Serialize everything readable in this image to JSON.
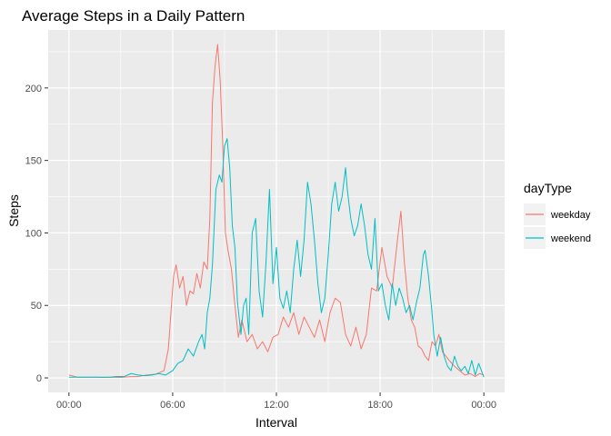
{
  "chart_data": {
    "type": "line",
    "title": "Average Steps in a Daily Pattern",
    "xlabel": "Interval",
    "ylabel": "Steps",
    "x_ticks": [
      "00:00",
      "06:00",
      "12:00",
      "18:00",
      "00:00"
    ],
    "x_tick_hours": [
      0,
      6,
      12,
      18,
      24
    ],
    "y_ticks": [
      0,
      50,
      100,
      150,
      200
    ],
    "xlim_hours": [
      -1.2,
      25.2
    ],
    "ylim": [
      -10,
      240
    ],
    "grid": true,
    "legend": {
      "title": "dayType",
      "position": "right"
    },
    "x_unit": "hour of day",
    "series": [
      {
        "name": "weekday",
        "color": "#F8766D",
        "points": [
          [
            0,
            2
          ],
          [
            0.5,
            0.5
          ],
          [
            1,
            0.5
          ],
          [
            1.5,
            0.5
          ],
          [
            2,
            0.3
          ],
          [
            2.5,
            0.5
          ],
          [
            3,
            0.3
          ],
          [
            3.5,
            0.8
          ],
          [
            4,
            1
          ],
          [
            4.5,
            2
          ],
          [
            5,
            2.5
          ],
          [
            5.5,
            5
          ],
          [
            5.75,
            20
          ],
          [
            5.9,
            45
          ],
          [
            6.05,
            70
          ],
          [
            6.2,
            78
          ],
          [
            6.4,
            62
          ],
          [
            6.6,
            70
          ],
          [
            6.8,
            50
          ],
          [
            7.0,
            60
          ],
          [
            7.2,
            58
          ],
          [
            7.4,
            72
          ],
          [
            7.6,
            62
          ],
          [
            7.8,
            80
          ],
          [
            8.0,
            75
          ],
          [
            8.15,
            110
          ],
          [
            8.3,
            190
          ],
          [
            8.45,
            215
          ],
          [
            8.6,
            230
          ],
          [
            8.75,
            205
          ],
          [
            8.9,
            160
          ],
          [
            9.05,
            100
          ],
          [
            9.2,
            88
          ],
          [
            9.4,
            75
          ],
          [
            9.6,
            50
          ],
          [
            9.8,
            28
          ],
          [
            10.0,
            40
          ],
          [
            10.3,
            25
          ],
          [
            10.6,
            30
          ],
          [
            10.9,
            20
          ],
          [
            11.2,
            25
          ],
          [
            11.5,
            18
          ],
          [
            11.8,
            28
          ],
          [
            12.1,
            30
          ],
          [
            12.4,
            42
          ],
          [
            12.7,
            35
          ],
          [
            13.0,
            45
          ],
          [
            13.3,
            30
          ],
          [
            13.6,
            42
          ],
          [
            13.9,
            35
          ],
          [
            14.2,
            28
          ],
          [
            14.5,
            40
          ],
          [
            14.8,
            25
          ],
          [
            15.1,
            45
          ],
          [
            15.4,
            55
          ],
          [
            15.7,
            52
          ],
          [
            16.0,
            30
          ],
          [
            16.3,
            22
          ],
          [
            16.6,
            35
          ],
          [
            16.9,
            20
          ],
          [
            17.2,
            30
          ],
          [
            17.5,
            62
          ],
          [
            17.8,
            60
          ],
          [
            18.1,
            90
          ],
          [
            18.4,
            70
          ],
          [
            18.7,
            62
          ],
          [
            19.0,
            95
          ],
          [
            19.2,
            115
          ],
          [
            19.4,
            80
          ],
          [
            19.6,
            55
          ],
          [
            19.8,
            40
          ],
          [
            20.0,
            35
          ],
          [
            20.2,
            22
          ],
          [
            20.4,
            20
          ],
          [
            20.6,
            15
          ],
          [
            20.8,
            12
          ],
          [
            21.0,
            25
          ],
          [
            21.2,
            22
          ],
          [
            21.4,
            30
          ],
          [
            21.6,
            18
          ],
          [
            21.8,
            15
          ],
          [
            22.0,
            12
          ],
          [
            22.3,
            8
          ],
          [
            22.6,
            5
          ],
          [
            22.9,
            2
          ],
          [
            23.2,
            3
          ],
          [
            23.5,
            1
          ],
          [
            23.75,
            3
          ],
          [
            24,
            2
          ]
        ]
      },
      {
        "name": "weekend",
        "color": "#00BFC4",
        "points": [
          [
            0,
            0.5
          ],
          [
            0.4,
            0.5
          ],
          [
            0.8,
            0.5
          ],
          [
            1.2,
            0.5
          ],
          [
            1.6,
            0.5
          ],
          [
            2,
            0.5
          ],
          [
            2.4,
            0.5
          ],
          [
            2.8,
            1
          ],
          [
            3.2,
            1
          ],
          [
            3.6,
            3
          ],
          [
            4,
            2
          ],
          [
            4.4,
            1.5
          ],
          [
            4.8,
            2
          ],
          [
            5.2,
            3
          ],
          [
            5.6,
            2
          ],
          [
            6.0,
            5
          ],
          [
            6.3,
            10
          ],
          [
            6.6,
            12
          ],
          [
            6.9,
            20
          ],
          [
            7.2,
            15
          ],
          [
            7.5,
            25
          ],
          [
            7.7,
            30
          ],
          [
            7.85,
            20
          ],
          [
            8.0,
            45
          ],
          [
            8.15,
            55
          ],
          [
            8.3,
            78
          ],
          [
            8.5,
            130
          ],
          [
            8.7,
            140
          ],
          [
            8.85,
            135
          ],
          [
            9.0,
            160
          ],
          [
            9.15,
            165
          ],
          [
            9.3,
            145
          ],
          [
            9.45,
            105
          ],
          [
            9.6,
            90
          ],
          [
            9.75,
            52
          ],
          [
            9.95,
            30
          ],
          [
            10.1,
            50
          ],
          [
            10.25,
            55
          ],
          [
            10.4,
            30
          ],
          [
            10.6,
            100
          ],
          [
            10.8,
            110
          ],
          [
            11.0,
            60
          ],
          [
            11.2,
            42
          ],
          [
            11.4,
            80
          ],
          [
            11.6,
            130
          ],
          [
            11.8,
            65
          ],
          [
            12.0,
            90
          ],
          [
            12.2,
            55
          ],
          [
            12.4,
            48
          ],
          [
            12.6,
            60
          ],
          [
            12.8,
            45
          ],
          [
            13.0,
            75
          ],
          [
            13.2,
            95
          ],
          [
            13.4,
            70
          ],
          [
            13.6,
            95
          ],
          [
            13.8,
            135
          ],
          [
            14.0,
            120
          ],
          [
            14.2,
            95
          ],
          [
            14.4,
            65
          ],
          [
            14.6,
            45
          ],
          [
            14.8,
            55
          ],
          [
            15.0,
            85
          ],
          [
            15.2,
            120
          ],
          [
            15.4,
            135
          ],
          [
            15.6,
            115
          ],
          [
            15.8,
            125
          ],
          [
            16.0,
            145
          ],
          [
            16.1,
            130
          ],
          [
            16.3,
            110
          ],
          [
            16.5,
            98
          ],
          [
            16.7,
            105
          ],
          [
            16.9,
            120
          ],
          [
            17.1,
            105
          ],
          [
            17.3,
            85
          ],
          [
            17.5,
            75
          ],
          [
            17.7,
            110
          ],
          [
            17.9,
            60
          ],
          [
            18.1,
            65
          ],
          [
            18.3,
            50
          ],
          [
            18.5,
            40
          ],
          [
            18.7,
            65
          ],
          [
            18.9,
            50
          ],
          [
            19.1,
            62
          ],
          [
            19.3,
            55
          ],
          [
            19.5,
            45
          ],
          [
            19.7,
            50
          ],
          [
            19.9,
            40
          ],
          [
            20.1,
            52
          ],
          [
            20.3,
            62
          ],
          [
            20.5,
            85
          ],
          [
            20.6,
            88
          ],
          [
            20.8,
            70
          ],
          [
            21.0,
            45
          ],
          [
            21.1,
            30
          ],
          [
            21.3,
            15
          ],
          [
            21.5,
            28
          ],
          [
            21.7,
            15
          ],
          [
            21.9,
            8
          ],
          [
            22.1,
            5
          ],
          [
            22.3,
            15
          ],
          [
            22.5,
            8
          ],
          [
            22.7,
            5
          ],
          [
            22.9,
            8
          ],
          [
            23.1,
            3
          ],
          [
            23.3,
            12
          ],
          [
            23.5,
            2
          ],
          [
            23.7,
            10
          ],
          [
            24,
            0.5
          ]
        ]
      }
    ]
  }
}
